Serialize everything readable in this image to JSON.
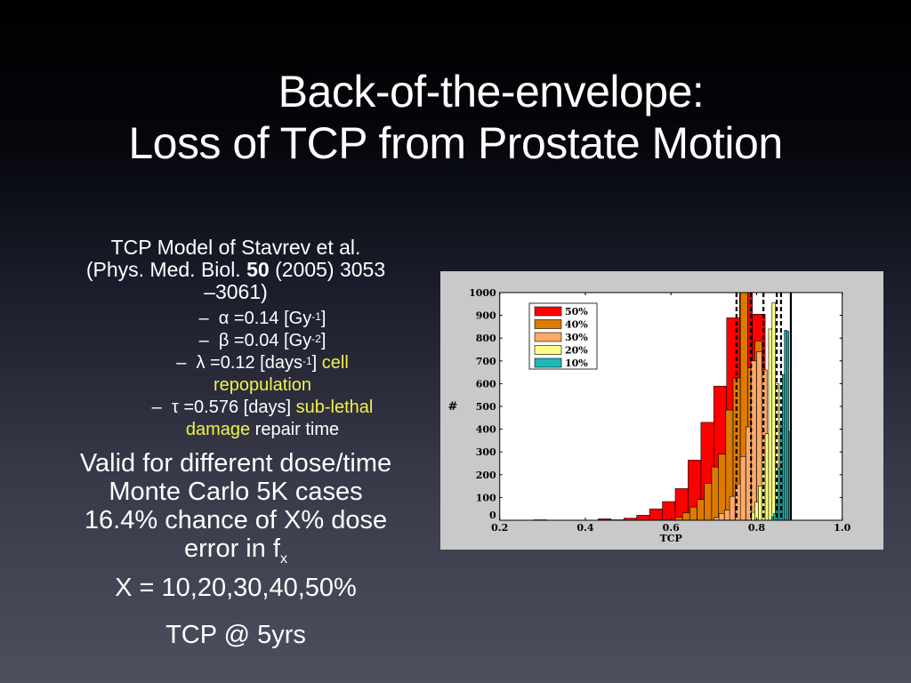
{
  "slide": {
    "title_line1": "Back-of-the-envelope:",
    "title_line2": "Loss of TCP from Prostate Motion",
    "model": {
      "line1": "TCP Model of Stavrev et al.",
      "line2_pre": "(Phys. Med. Biol. ",
      "line2_bold": "50",
      "line2_post": " (2005) 3053",
      "line3": "–3061)"
    },
    "params": [
      {
        "dash": "–",
        "text": "α =0.14 [Gy",
        "sup": "-1",
        "tail": "]",
        "hl": "",
        "tail2": ""
      },
      {
        "dash": "–",
        "text": "β =0.04 [Gy",
        "sup": "-2",
        "tail": "]",
        "hl": "",
        "tail2": ""
      },
      {
        "dash": "–",
        "text": "λ =0.12 [days",
        "sup": "-1",
        "tail": "] ",
        "hl": "cell",
        "tail2": ""
      },
      {
        "dash": "",
        "text": "",
        "sup": "",
        "tail": "",
        "hl": "repopulation",
        "tail2": ""
      },
      {
        "dash": "–",
        "text": "τ =0.576 [days] ",
        "sup": "",
        "tail": "",
        "hl": "sub-lethal",
        "tail2": ""
      },
      {
        "dash": "",
        "text": "",
        "sup": "",
        "tail": "",
        "hl": "damage",
        "tail2": " repair time"
      }
    ],
    "bullets": {
      "line1": "Valid for different dose/time",
      "line2": "Monte Carlo 5K cases",
      "line3": "16.4% chance of X% dose",
      "line4_pre": "error in f",
      "line4_sub": "x",
      "line5": "X = 10,20,30,40,50%"
    },
    "footer": "TCP @ 5yrs"
  },
  "chart_data": {
    "type": "bar",
    "subtype": "overlapping histogram",
    "title": "",
    "xlabel": "TCP",
    "ylabel": "#",
    "xlim": [
      0.2,
      1.0
    ],
    "ylim": [
      0,
      1000
    ],
    "xticks": [
      "0.2",
      "0.4",
      "0.6",
      "0.8",
      "1.0"
    ],
    "yticks": [
      "0",
      "100",
      "200",
      "300",
      "400",
      "500",
      "600",
      "700",
      "800",
      "900",
      "1000"
    ],
    "legend_position": "upper left",
    "colors": {
      "50%": "#ff0000",
      "40%": "#dd7a00",
      "30%": "#ffaa6a",
      "20%": "#ffff88",
      "10%": "#1fb8b8"
    },
    "series": [
      {
        "name": "50%",
        "bin_width": 0.03,
        "bin_starts": [
          0.28,
          0.43,
          0.46,
          0.49,
          0.52,
          0.55,
          0.58,
          0.61,
          0.64,
          0.67,
          0.7,
          0.73,
          0.76,
          0.79
        ],
        "values": [
          2,
          6,
          2,
          9,
          22,
          50,
          82,
          139,
          264,
          430,
          589,
          889,
          1000,
          905
        ]
      },
      {
        "name": "40%",
        "bin_width": 0.0168,
        "bin_starts": [
          0.61,
          0.627,
          0.644,
          0.661,
          0.678,
          0.695,
          0.711,
          0.728,
          0.745,
          0.762,
          0.779,
          0.796,
          0.813
        ],
        "values": [
          13,
          33,
          58,
          91,
          163,
          234,
          290,
          484,
          625,
          1000,
          670,
          788,
          250
        ]
      },
      {
        "name": "30%",
        "bin_width": 0.0125,
        "bin_starts": [
          0.7,
          0.712,
          0.725,
          0.737,
          0.75,
          0.762,
          0.775,
          0.787,
          0.8,
          0.812,
          0.825
        ],
        "values": [
          12,
          30,
          45,
          105,
          160,
          280,
          410,
          700,
          740,
          660,
          100
        ]
      },
      {
        "name": "20%",
        "bin_width": 0.008,
        "bin_starts": [
          0.788,
          0.796,
          0.804,
          0.812,
          0.82,
          0.828,
          0.836,
          0.844,
          0.852
        ],
        "values": [
          35,
          80,
          150,
          260,
          380,
          840,
          955,
          600,
          120
        ]
      },
      {
        "name": "10%",
        "bin_width": 0.005,
        "bin_starts": [
          0.835,
          0.84,
          0.845,
          0.85,
          0.855,
          0.86,
          0.865,
          0.87,
          0.875
        ],
        "values": [
          15,
          30,
          90,
          230,
          420,
          640,
          835,
          830,
          390
        ]
      }
    ],
    "vertical_lines": [
      {
        "x": 0.753,
        "style": "dashed"
      },
      {
        "x": 0.787,
        "style": "dashed"
      },
      {
        "x": 0.816,
        "style": "dashed"
      },
      {
        "x": 0.847,
        "style": "dashed"
      },
      {
        "x": 0.857,
        "style": "dashed"
      },
      {
        "x": 0.88,
        "style": "solid"
      }
    ]
  }
}
